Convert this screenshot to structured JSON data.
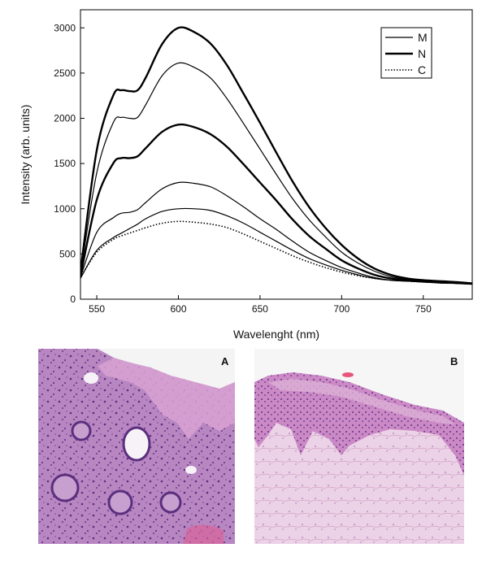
{
  "chart_data": {
    "type": "line",
    "xlabel": "Wavelenght (nm)",
    "ylabel": "Intensity (arb. units)",
    "xlim": [
      540,
      780
    ],
    "ylim": [
      0,
      3200
    ],
    "xticks": [
      550,
      600,
      650,
      700,
      750
    ],
    "yticks": [
      0,
      500,
      1000,
      1500,
      2000,
      2500,
      3000
    ],
    "grid": false,
    "legend": {
      "position": "top-right",
      "entries": [
        {
          "label": "M",
          "style": "solid-thin"
        },
        {
          "label": "N",
          "style": "solid-thick"
        },
        {
          "label": "C",
          "style": "dotted"
        }
      ]
    },
    "x": [
      540,
      550,
      560,
      565,
      570,
      575,
      580,
      590,
      600,
      610,
      620,
      630,
      640,
      650,
      660,
      670,
      680,
      690,
      700,
      710,
      720,
      730,
      740,
      750,
      760,
      770,
      780
    ],
    "series": [
      {
        "style": "solid-thick",
        "values": [
          300,
          1650,
          2250,
          2310,
          2300,
          2310,
          2450,
          2820,
          3000,
          2950,
          2820,
          2580,
          2270,
          1950,
          1620,
          1300,
          1020,
          790,
          600,
          450,
          340,
          270,
          230,
          210,
          200,
          190,
          175
        ]
      },
      {
        "style": "solid-thin",
        "values": [
          270,
          1400,
          1950,
          2010,
          2000,
          2010,
          2150,
          2470,
          2610,
          2560,
          2440,
          2210,
          1940,
          1660,
          1380,
          1110,
          880,
          690,
          520,
          400,
          310,
          250,
          220,
          200,
          190,
          180,
          170
        ]
      },
      {
        "style": "solid-thick",
        "values": [
          250,
          1100,
          1500,
          1560,
          1560,
          1580,
          1670,
          1850,
          1930,
          1900,
          1820,
          1680,
          1490,
          1290,
          1090,
          880,
          700,
          560,
          430,
          340,
          270,
          230,
          210,
          200,
          190,
          180,
          170
        ]
      },
      {
        "style": "solid-thin",
        "values": [
          240,
          740,
          900,
          950,
          960,
          990,
          1070,
          1220,
          1290,
          1280,
          1240,
          1140,
          1020,
          890,
          770,
          640,
          520,
          430,
          350,
          290,
          240,
          210,
          200,
          190,
          180,
          175,
          170
        ]
      },
      {
        "style": "solid-thin",
        "values": [
          230,
          540,
          680,
          730,
          780,
          830,
          890,
          970,
          1000,
          1000,
          980,
          920,
          840,
          740,
          640,
          540,
          450,
          380,
          320,
          270,
          230,
          210,
          200,
          190,
          180,
          175,
          170
        ]
      },
      {
        "style": "dotted",
        "values": [
          240,
          520,
          660,
          700,
          730,
          760,
          790,
          840,
          860,
          850,
          830,
          790,
          720,
          640,
          560,
          480,
          410,
          350,
          300,
          260,
          230,
          210,
          200,
          190,
          180,
          175,
          170
        ]
      }
    ]
  },
  "panels": [
    {
      "letter": "A",
      "tissue_color": "#b07ab8",
      "dark_color": "#6a3a88",
      "light_color": "#e8c8e4"
    },
    {
      "letter": "B",
      "tissue_color": "#e7c2dc",
      "dark_color": "#7a3c8c",
      "light_color": "#f5e6f0"
    }
  ]
}
